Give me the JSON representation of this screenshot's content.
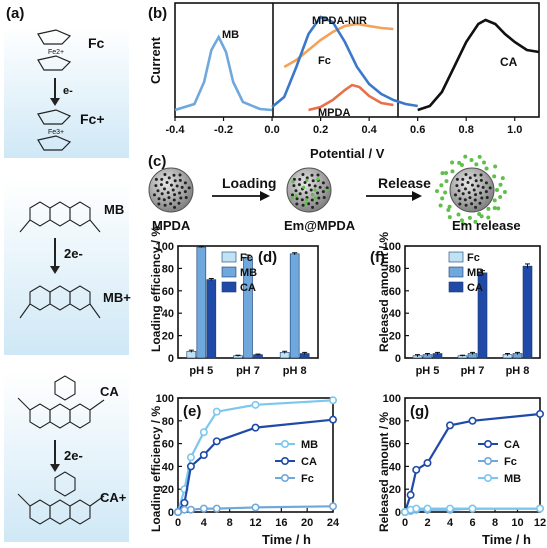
{
  "panel_labels": {
    "a": "(a)",
    "b": "(b)",
    "c": "(c)",
    "d": "(d)",
    "e": "(e)",
    "f": "(f)",
    "g": "(g)"
  },
  "colors": {
    "fc_light": "#bfe3f5",
    "mb": "#6fa8dc",
    "ca_dark": "#1f4aa8",
    "mpda_nir": "#f4a259",
    "mpda": "#e8704a",
    "mpda_curve": "#3b78c9",
    "panel_a_top": "#ffffff",
    "panel_a_bottom": "#cfe8f6"
  },
  "scheme_a": {
    "fc": {
      "name": "Fc",
      "metal_top": "Fe2+",
      "electron": "e-",
      "product": "Fc+",
      "metal_bottom": "Fe3+"
    },
    "mb": {
      "name": "MB",
      "electron": "2e-",
      "product": "MB+"
    },
    "ca": {
      "name": "CA",
      "electron": "2e-",
      "product": "CA+"
    }
  },
  "scheme_c": {
    "steps": [
      "Loading",
      "Release"
    ],
    "particles": [
      "MPDA",
      "Em@MPDA",
      "Em release"
    ]
  },
  "chart_data": [
    {
      "panel": "b",
      "type": "line",
      "ylabel": "Current",
      "xlabel": "Potential / V",
      "xticks": [
        "-0.4",
        "-0.2",
        "0.0",
        "0.2",
        "0.4",
        "0.6",
        "0.8",
        "1.0"
      ],
      "series": [
        {
          "name": "MB",
          "x": [
            -0.4,
            -0.32,
            -0.28,
            -0.25,
            -0.22,
            -0.19,
            -0.16,
            -0.12,
            -0.05,
            0.0
          ],
          "y": [
            0.02,
            0.08,
            0.3,
            0.62,
            0.75,
            0.6,
            0.3,
            0.1,
            0.03,
            0.02
          ]
        },
        {
          "name": "MPDA-NIR",
          "x": [
            0.05,
            0.1,
            0.15,
            0.2,
            0.25,
            0.3,
            0.35,
            0.4,
            0.45,
            0.5
          ],
          "y": [
            0.45,
            0.52,
            0.62,
            0.72,
            0.8,
            0.86,
            0.88,
            0.86,
            0.84,
            0.83
          ]
        },
        {
          "name": "Fc",
          "x": [
            0.0,
            0.05,
            0.1,
            0.15,
            0.2,
            0.25,
            0.3,
            0.35,
            0.4,
            0.45,
            0.5,
            0.55,
            0.6
          ],
          "y": [
            0.05,
            0.15,
            0.45,
            0.78,
            0.95,
            0.9,
            0.7,
            0.45,
            0.28,
            0.18,
            0.12,
            0.08,
            0.06
          ]
        },
        {
          "name": "MPDA",
          "x": [
            0.15,
            0.2,
            0.25,
            0.3,
            0.33,
            0.36,
            0.4,
            0.45,
            0.5
          ],
          "y": [
            0.02,
            0.05,
            0.12,
            0.22,
            0.27,
            0.25,
            0.16,
            0.09,
            0.07
          ]
        },
        {
          "name": "CA",
          "x": [
            0.6,
            0.65,
            0.7,
            0.75,
            0.8,
            0.85,
            0.88,
            0.92,
            0.96,
            1.0,
            1.05,
            1.1
          ],
          "y": [
            0.02,
            0.06,
            0.2,
            0.45,
            0.7,
            0.88,
            0.92,
            0.88,
            0.78,
            0.7,
            0.62,
            0.6
          ]
        }
      ]
    },
    {
      "panel": "d",
      "type": "bar",
      "ylabel": "Loading efficiency / %",
      "categories": [
        "pH 5",
        "pH 7",
        "pH 8"
      ],
      "yticks": [
        "0",
        "20",
        "40",
        "60",
        "80",
        "100"
      ],
      "ylim": [
        0,
        100
      ],
      "series": [
        {
          "name": "Fc",
          "values": [
            6,
            2,
            5
          ],
          "errors": [
            1,
            0.5,
            1
          ]
        },
        {
          "name": "MB",
          "values": [
            99,
            90,
            93
          ],
          "errors": [
            0.5,
            2,
            1
          ]
        },
        {
          "name": "CA",
          "values": [
            70,
            3,
            4
          ],
          "errors": [
            1,
            0.5,
            1
          ]
        }
      ]
    },
    {
      "panel": "f",
      "type": "bar",
      "ylabel": "Released amount / %",
      "categories": [
        "pH 5",
        "pH 7",
        "pH 8"
      ],
      "yticks": [
        "0",
        "20",
        "40",
        "60",
        "80",
        "100"
      ],
      "ylim": [
        0,
        100
      ],
      "series": [
        {
          "name": "Fc",
          "values": [
            2,
            2,
            3
          ],
          "errors": [
            1,
            0.5,
            1
          ]
        },
        {
          "name": "MB",
          "values": [
            3,
            4,
            4
          ],
          "errors": [
            1,
            1,
            1
          ]
        },
        {
          "name": "CA",
          "values": [
            4,
            76,
            82
          ],
          "errors": [
            1,
            2,
            2
          ]
        }
      ]
    },
    {
      "panel": "e",
      "type": "line",
      "ylabel": "Loading efficiency / %",
      "xlabel": "Time / h",
      "xticks": [
        "0",
        "4",
        "8",
        "12",
        "16",
        "20",
        "24"
      ],
      "xlim": [
        0,
        24
      ],
      "yticks": [
        "0",
        "20",
        "40",
        "60",
        "80",
        "100"
      ],
      "ylim": [
        0,
        100
      ],
      "series": [
        {
          "name": "MB",
          "x": [
            0,
            1,
            2,
            4,
            6,
            12,
            24
          ],
          "y": [
            0,
            20,
            48,
            70,
            88,
            94,
            98
          ]
        },
        {
          "name": "CA",
          "x": [
            0,
            1,
            2,
            4,
            6,
            12,
            24
          ],
          "y": [
            0,
            8,
            40,
            50,
            62,
            74,
            81
          ]
        },
        {
          "name": "Fc",
          "x": [
            0,
            1,
            2,
            4,
            6,
            12,
            24
          ],
          "y": [
            0,
            2,
            2,
            3,
            3,
            4,
            5
          ]
        }
      ]
    },
    {
      "panel": "g",
      "type": "line",
      "ylabel": "Released amount / %",
      "xlabel": "Time / h",
      "xticks": [
        "0",
        "2",
        "4",
        "6",
        "8",
        "10",
        "12"
      ],
      "xlim": [
        0,
        12
      ],
      "yticks": [
        "0",
        "20",
        "40",
        "60",
        "80",
        "100"
      ],
      "ylim": [
        0,
        100
      ],
      "series": [
        {
          "name": "CA",
          "x": [
            0,
            0.5,
            1,
            2,
            4,
            6,
            12
          ],
          "y": [
            0,
            15,
            37,
            43,
            76,
            80,
            86
          ]
        },
        {
          "name": "Fc",
          "x": [
            0,
            0.5,
            1,
            2,
            4,
            6,
            12
          ],
          "y": [
            0,
            1,
            2,
            2,
            2,
            3,
            3
          ]
        },
        {
          "name": "MB",
          "x": [
            0,
            0.5,
            1,
            2,
            4,
            6,
            12
          ],
          "y": [
            0,
            2,
            3,
            3,
            3,
            3,
            3
          ]
        }
      ]
    }
  ]
}
